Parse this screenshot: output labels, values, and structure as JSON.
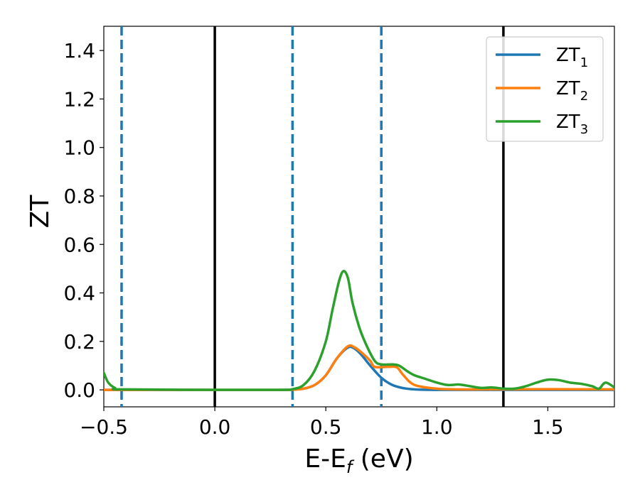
{
  "chart_data": {
    "type": "line",
    "xlabel_main": "E-E",
    "xlabel_sub": "f",
    "xlabel_unit": " (eV)",
    "ylabel": "ZT",
    "xlim": [
      -0.5,
      1.8
    ],
    "ylim": [
      -0.07,
      1.5
    ],
    "x_ticks": [
      -0.5,
      0.0,
      0.5,
      1.0,
      1.5
    ],
    "x_tick_labels": [
      "−0.5",
      "0.0",
      "0.5",
      "1.0",
      "1.5"
    ],
    "y_ticks": [
      0.0,
      0.2,
      0.4,
      0.6,
      0.8,
      1.0,
      1.2,
      1.4
    ],
    "y_tick_labels": [
      "0.0",
      "0.2",
      "0.4",
      "0.6",
      "0.8",
      "1.0",
      "1.2",
      "1.4"
    ],
    "grid": false,
    "legend_position": "top-right",
    "vlines": [
      {
        "x": -0.42,
        "style": "dashed",
        "color": "#1f77b4"
      },
      {
        "x": 0.0,
        "style": "solid",
        "color": "#000000"
      },
      {
        "x": 0.35,
        "style": "dashed",
        "color": "#1f77b4"
      },
      {
        "x": 0.75,
        "style": "dashed",
        "color": "#1f77b4"
      },
      {
        "x": 1.3,
        "style": "solid",
        "color": "#000000"
      }
    ],
    "series": [
      {
        "name": "ZT",
        "name_sub": "1",
        "color": "#1f77b4",
        "x": [
          -0.5,
          -0.45,
          -0.4,
          0.0,
          0.3,
          0.35,
          0.4,
          0.45,
          0.5,
          0.55,
          0.6,
          0.63,
          0.66,
          0.7,
          0.75,
          0.8,
          0.85,
          0.9,
          1.0,
          1.3,
          1.8
        ],
        "y": [
          0.0,
          0.0,
          0.0,
          0.0,
          0.0,
          0.001,
          0.005,
          0.02,
          0.06,
          0.13,
          0.175,
          0.17,
          0.145,
          0.1,
          0.05,
          0.02,
          0.007,
          0.002,
          0.0,
          0.0,
          0.0
        ]
      },
      {
        "name": "ZT",
        "name_sub": "2",
        "color": "#ff7f0e",
        "x": [
          -0.5,
          -0.45,
          -0.4,
          0.0,
          0.3,
          0.35,
          0.4,
          0.45,
          0.5,
          0.55,
          0.6,
          0.63,
          0.66,
          0.7,
          0.72,
          0.78,
          0.82,
          0.85,
          0.9,
          1.0,
          1.1,
          1.2,
          1.3,
          1.5,
          1.8
        ],
        "y": [
          0.0,
          0.0,
          0.0,
          0.0,
          0.0,
          0.001,
          0.005,
          0.02,
          0.06,
          0.13,
          0.18,
          0.175,
          0.155,
          0.12,
          0.095,
          0.095,
          0.093,
          0.06,
          0.02,
          0.005,
          0.002,
          0.002,
          0.002,
          0.003,
          0.002
        ]
      },
      {
        "name": "ZT",
        "name_sub": "3",
        "color": "#2ca02c",
        "x": [
          -0.5,
          -0.48,
          -0.45,
          -0.42,
          0.0,
          0.3,
          0.35,
          0.4,
          0.45,
          0.5,
          0.53,
          0.56,
          0.58,
          0.6,
          0.62,
          0.65,
          0.68,
          0.72,
          0.75,
          0.8,
          0.83,
          0.87,
          0.9,
          0.95,
          1.0,
          1.05,
          1.1,
          1.15,
          1.2,
          1.25,
          1.3,
          1.35,
          1.4,
          1.45,
          1.5,
          1.55,
          1.6,
          1.65,
          1.7,
          1.73,
          1.76,
          1.8
        ],
        "y": [
          0.07,
          0.03,
          0.008,
          0.002,
          0.0,
          0.0,
          0.003,
          0.02,
          0.08,
          0.2,
          0.33,
          0.45,
          0.49,
          0.46,
          0.36,
          0.26,
          0.19,
          0.12,
          0.105,
          0.105,
          0.1,
          0.075,
          0.06,
          0.045,
          0.03,
          0.02,
          0.022,
          0.015,
          0.008,
          0.01,
          0.005,
          0.005,
          0.015,
          0.03,
          0.042,
          0.04,
          0.03,
          0.025,
          0.015,
          0.005,
          0.03,
          0.01
        ]
      }
    ]
  }
}
